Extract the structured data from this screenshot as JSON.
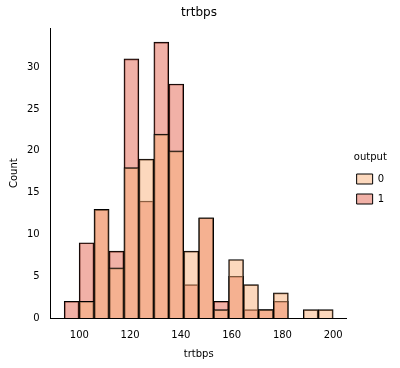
{
  "chart_data": {
    "type": "histogram",
    "title": "trtbps",
    "x_label": "trtbps",
    "y_label": "Count",
    "bins": [
      94,
      99.89,
      105.78,
      111.67,
      117.56,
      123.44,
      129.33,
      135.22,
      141.11,
      147,
      152.89,
      158.78,
      164.67,
      170.56,
      176.44,
      182.33,
      188.22,
      194.11,
      200
    ],
    "series": [
      {
        "name": "0",
        "color": "#f9b27c",
        "values": [
          0,
          2,
          13,
          6,
          18,
          19,
          22,
          20,
          8,
          12,
          1,
          7,
          4,
          1,
          3,
          0,
          1,
          1
        ]
      },
      {
        "name": "1",
        "color": "#e3634f",
        "values": [
          2,
          9,
          13,
          8,
          31,
          14,
          33,
          28,
          4,
          12,
          2,
          5,
          1,
          1,
          2,
          0,
          0,
          0
        ]
      }
    ],
    "xlim": [
      88.7,
      205.3
    ],
    "ylim": [
      0,
      34.65
    ],
    "xticks": [
      100,
      120,
      140,
      160,
      180,
      200
    ],
    "yticks": [
      0,
      5,
      10,
      15,
      20,
      25,
      30
    ],
    "legend": "right",
    "legend_title": "output",
    "grid": false
  }
}
